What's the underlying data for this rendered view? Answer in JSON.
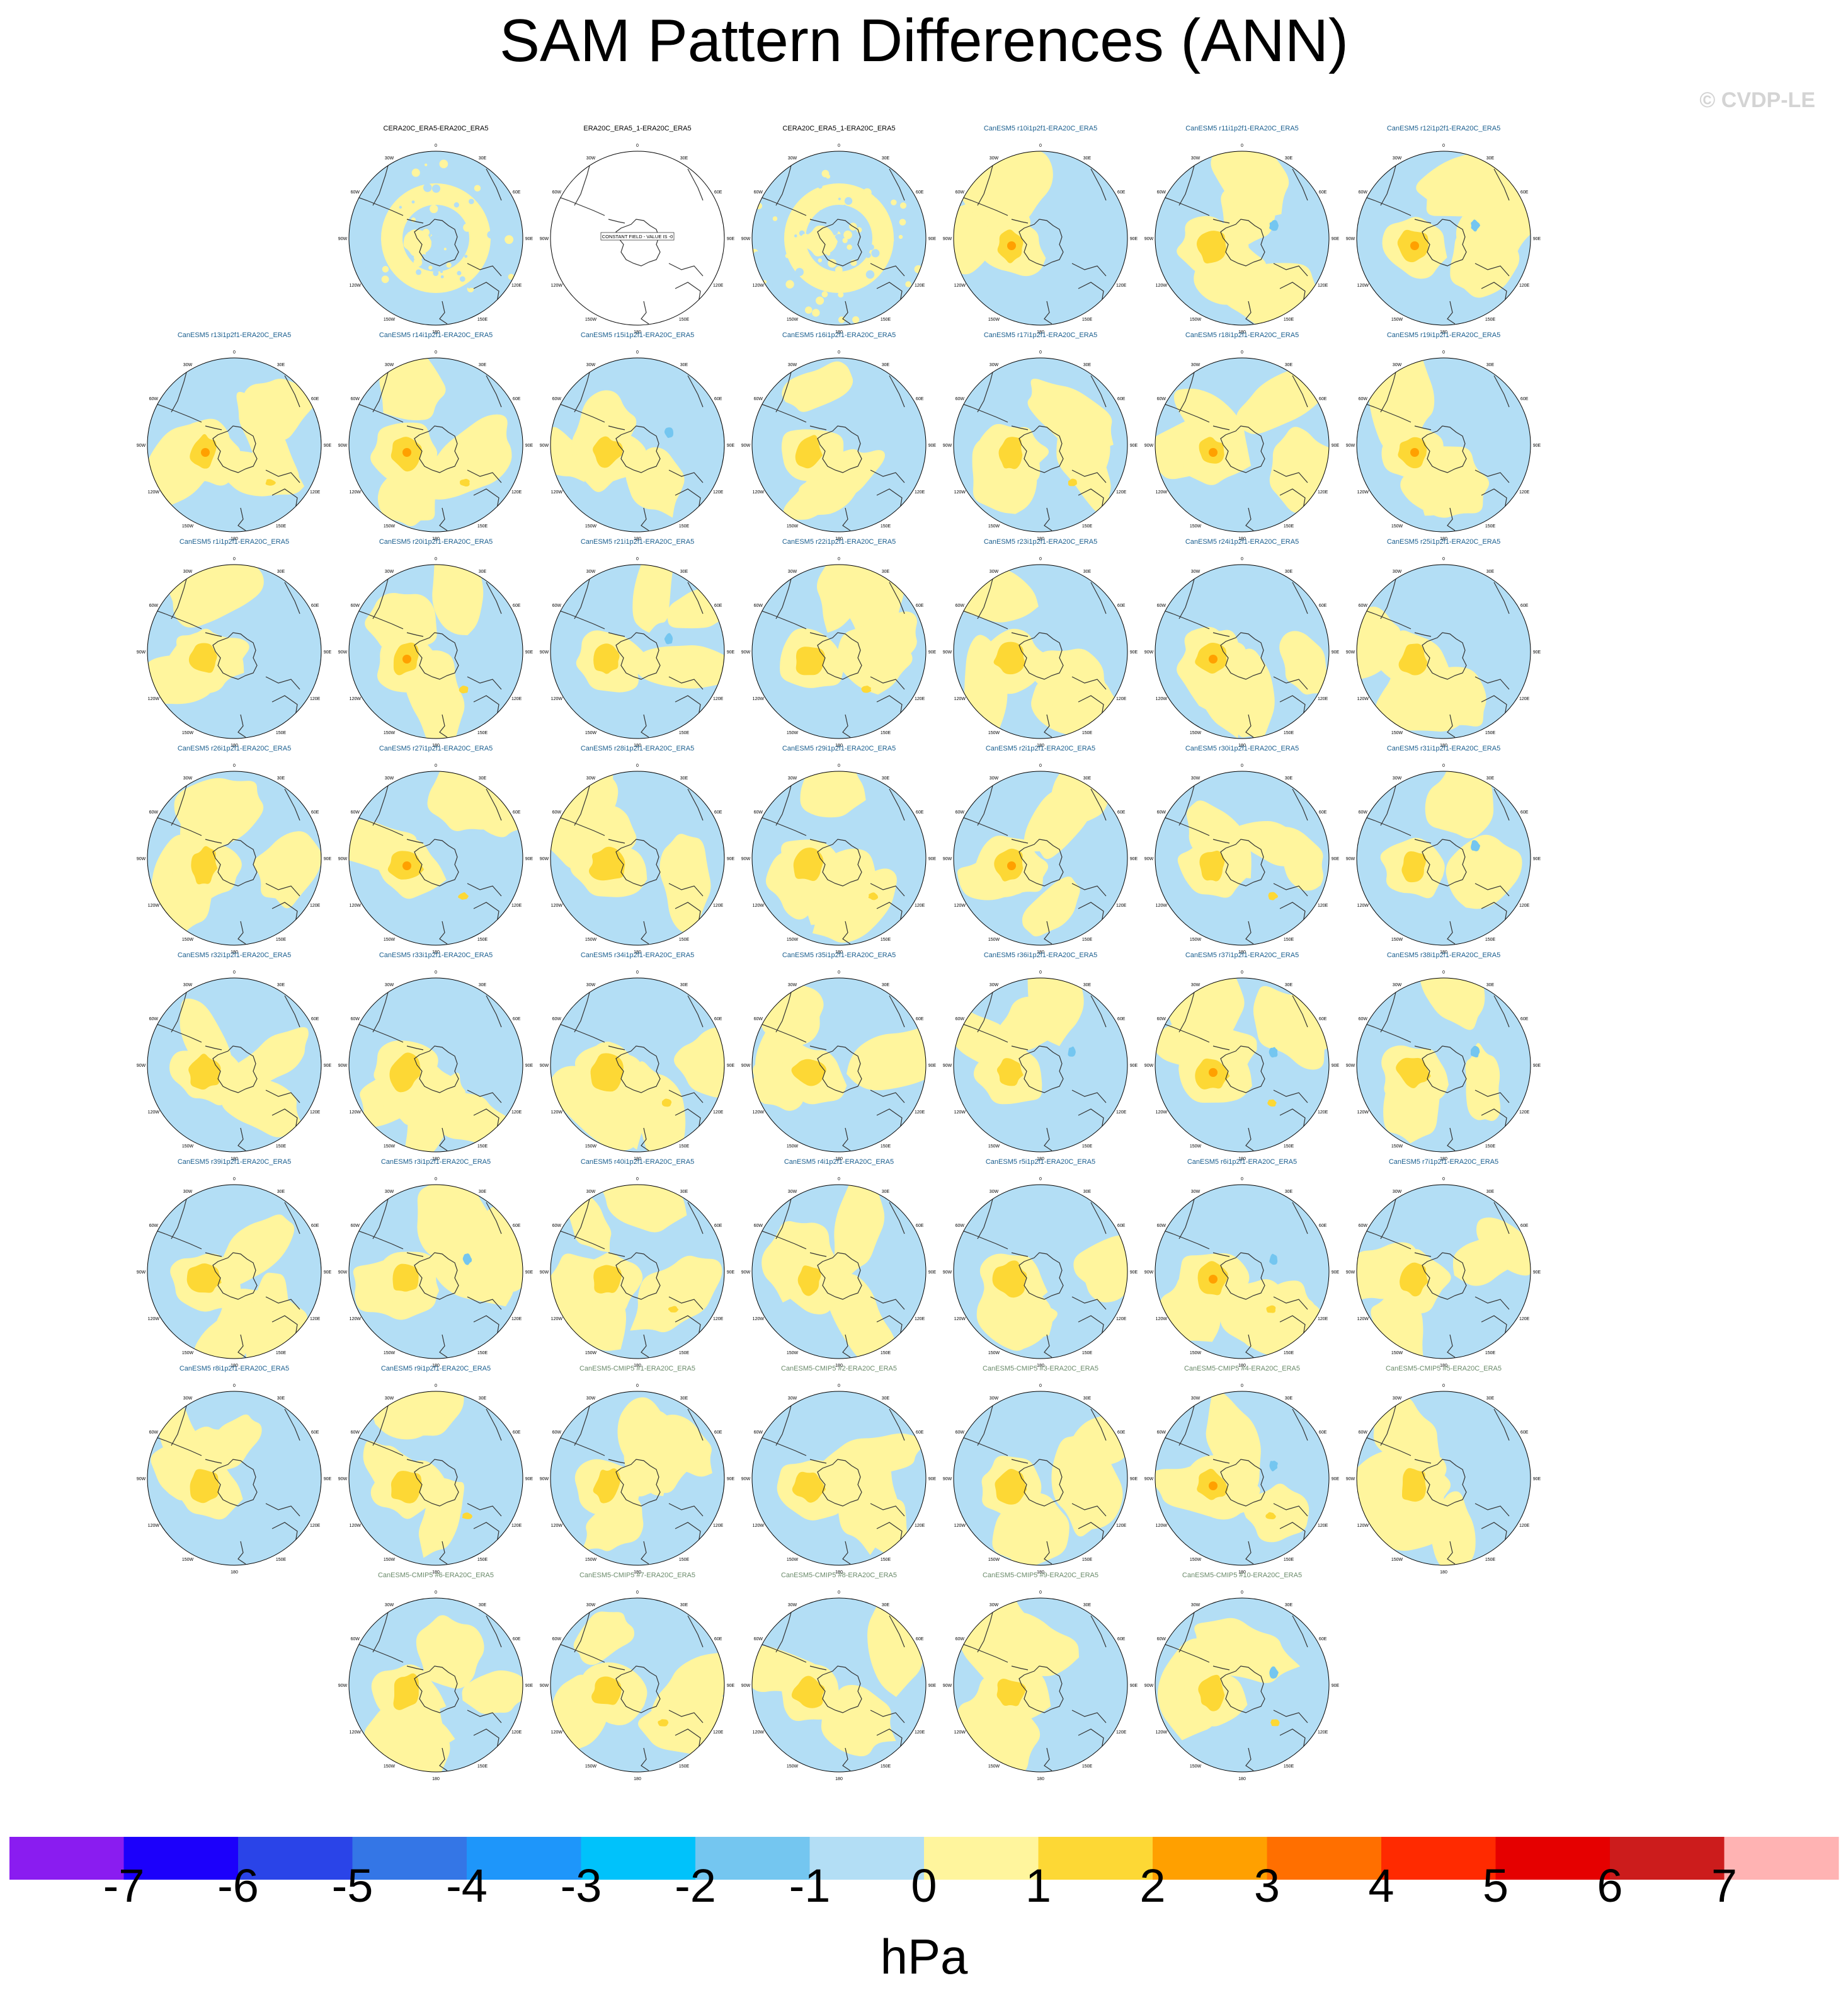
{
  "title": "SAM Pattern Differences (ANN)",
  "watermark": "© CVDP-LE",
  "map_labels": {
    "lon_top": "0",
    "lon_30w": "30W",
    "lon_30e": "30E",
    "lon_60w": "60W",
    "lon_60e": "60E",
    "lon_90w": "90W",
    "lon_90e": "90E",
    "lon_120w": "120W",
    "lon_120e": "120E",
    "lon_150w": "150W",
    "lon_150e": "150E",
    "lon_bottom": "180"
  },
  "constant_field_label": "CONSTANT FIELD - VALUE IS -0",
  "colors": {
    "obs_title": "#000000",
    "lens_title": "#1a5e8e",
    "cmip_title": "#6a8a6a",
    "pos1": "#fff59d",
    "pos2": "#fdd835",
    "pos3": "#ffa000",
    "neg1": "#b3def5",
    "neg2": "#74c6f0",
    "coast": "#333333"
  },
  "chart_data": {
    "type": "heatmap",
    "description_type": "polar-stereographic map panels",
    "units": "hPa",
    "colorbar": {
      "levels": [
        -7,
        -6,
        -5,
        -4,
        -3,
        -2,
        -1,
        0,
        1,
        2,
        3,
        4,
        5,
        6,
        7
      ],
      "tick_labels": [
        "-7",
        "-6",
        "-5",
        "-4",
        "-3",
        "-2",
        "-1",
        "0",
        "1",
        "2",
        "3",
        "4",
        "5",
        "6",
        "7"
      ],
      "colors": [
        "#8a1cf0",
        "#1c00fb",
        "#2a44e8",
        "#3476e6",
        "#1e96fa",
        "#00c2fb",
        "#74c6f0",
        "#b3def5",
        "#fff59d",
        "#fdd835",
        "#ffa000",
        "#ff6f00",
        "#ff2a00",
        "#e50000",
        "#cc1c1c",
        "#ffb3b3"
      ]
    },
    "panels": [
      {
        "title": "CERA20C_ERA5-ERA20C_ERA5",
        "group": "obs",
        "row": 0,
        "col": 1,
        "style": "noisy"
      },
      {
        "title": "ERA20C_ERA5_1-ERA20C_ERA5",
        "group": "obs",
        "row": 0,
        "col": 2,
        "style": "constant"
      },
      {
        "title": "CERA20C_ERA5_1-ERA20C_ERA5",
        "group": "obs",
        "row": 0,
        "col": 3,
        "style": "noisy"
      },
      {
        "title": "CanESM5 r10i1p2f1-ERA20C_ERA5",
        "group": "lens",
        "row": 0,
        "col": 4
      },
      {
        "title": "CanESM5 r11i1p2f1-ERA20C_ERA5",
        "group": "lens",
        "row": 0,
        "col": 5
      },
      {
        "title": "CanESM5 r12i1p2f1-ERA20C_ERA5",
        "group": "lens",
        "row": 0,
        "col": 6
      },
      {
        "title": "CanESM5 r13i1p2f1-ERA20C_ERA5",
        "group": "lens",
        "row": 1,
        "col": 0
      },
      {
        "title": "CanESM5 r14i1p2f1-ERA20C_ERA5",
        "group": "lens",
        "row": 1,
        "col": 1
      },
      {
        "title": "CanESM5 r15i1p2f1-ERA20C_ERA5",
        "group": "lens",
        "row": 1,
        "col": 2
      },
      {
        "title": "CanESM5 r16i1p2f1-ERA20C_ERA5",
        "group": "lens",
        "row": 1,
        "col": 3
      },
      {
        "title": "CanESM5 r17i1p2f1-ERA20C_ERA5",
        "group": "lens",
        "row": 1,
        "col": 4
      },
      {
        "title": "CanESM5 r18i1p2f1-ERA20C_ERA5",
        "group": "lens",
        "row": 1,
        "col": 5
      },
      {
        "title": "CanESM5 r19i1p2f1-ERA20C_ERA5",
        "group": "lens",
        "row": 1,
        "col": 6
      },
      {
        "title": "CanESM5 r1i1p2f1-ERA20C_ERA5",
        "group": "lens",
        "row": 2,
        "col": 0
      },
      {
        "title": "CanESM5 r20i1p2f1-ERA20C_ERA5",
        "group": "lens",
        "row": 2,
        "col": 1
      },
      {
        "title": "CanESM5 r21i1p2f1-ERA20C_ERA5",
        "group": "lens",
        "row": 2,
        "col": 2
      },
      {
        "title": "CanESM5 r22i1p2f1-ERA20C_ERA5",
        "group": "lens",
        "row": 2,
        "col": 3
      },
      {
        "title": "CanESM5 r23i1p2f1-ERA20C_ERA5",
        "group": "lens",
        "row": 2,
        "col": 4
      },
      {
        "title": "CanESM5 r24i1p2f1-ERA20C_ERA5",
        "group": "lens",
        "row": 2,
        "col": 5
      },
      {
        "title": "CanESM5 r25i1p2f1-ERA20C_ERA5",
        "group": "lens",
        "row": 2,
        "col": 6
      },
      {
        "title": "CanESM5 r26i1p2f1-ERA20C_ERA5",
        "group": "lens",
        "row": 3,
        "col": 0
      },
      {
        "title": "CanESM5 r27i1p2f1-ERA20C_ERA5",
        "group": "lens",
        "row": 3,
        "col": 1
      },
      {
        "title": "CanESM5 r28i1p2f1-ERA20C_ERA5",
        "group": "lens",
        "row": 3,
        "col": 2
      },
      {
        "title": "CanESM5 r29i1p2f1-ERA20C_ERA5",
        "group": "lens",
        "row": 3,
        "col": 3
      },
      {
        "title": "CanESM5 r2i1p2f1-ERA20C_ERA5",
        "group": "lens",
        "row": 3,
        "col": 4
      },
      {
        "title": "CanESM5 r30i1p2f1-ERA20C_ERA5",
        "group": "lens",
        "row": 3,
        "col": 5
      },
      {
        "title": "CanESM5 r31i1p2f1-ERA20C_ERA5",
        "group": "lens",
        "row": 3,
        "col": 6
      },
      {
        "title": "CanESM5 r32i1p2f1-ERA20C_ERA5",
        "group": "lens",
        "row": 4,
        "col": 0
      },
      {
        "title": "CanESM5 r33i1p2f1-ERA20C_ERA5",
        "group": "lens",
        "row": 4,
        "col": 1
      },
      {
        "title": "CanESM5 r34i1p2f1-ERA20C_ERA5",
        "group": "lens",
        "row": 4,
        "col": 2
      },
      {
        "title": "CanESM5 r35i1p2f1-ERA20C_ERA5",
        "group": "lens",
        "row": 4,
        "col": 3
      },
      {
        "title": "CanESM5 r36i1p2f1-ERA20C_ERA5",
        "group": "lens",
        "row": 4,
        "col": 4
      },
      {
        "title": "CanESM5 r37i1p2f1-ERA20C_ERA5",
        "group": "lens",
        "row": 4,
        "col": 5
      },
      {
        "title": "CanESM5 r38i1p2f1-ERA20C_ERA5",
        "group": "lens",
        "row": 4,
        "col": 6
      },
      {
        "title": "CanESM5 r39i1p2f1-ERA20C_ERA5",
        "group": "lens",
        "row": 5,
        "col": 0
      },
      {
        "title": "CanESM5 r3i1p2f1-ERA20C_ERA5",
        "group": "lens",
        "row": 5,
        "col": 1
      },
      {
        "title": "CanESM5 r40i1p2f1-ERA20C_ERA5",
        "group": "lens",
        "row": 5,
        "col": 2
      },
      {
        "title": "CanESM5 r4i1p2f1-ERA20C_ERA5",
        "group": "lens",
        "row": 5,
        "col": 3
      },
      {
        "title": "CanESM5 r5i1p2f1-ERA20C_ERA5",
        "group": "lens",
        "row": 5,
        "col": 4
      },
      {
        "title": "CanESM5 r6i1p2f1-ERA20C_ERA5",
        "group": "lens",
        "row": 5,
        "col": 5
      },
      {
        "title": "CanESM5 r7i1p2f1-ERA20C_ERA5",
        "group": "lens",
        "row": 5,
        "col": 6
      },
      {
        "title": "CanESM5 r8i1p2f1-ERA20C_ERA5",
        "group": "lens",
        "row": 6,
        "col": 0
      },
      {
        "title": "CanESM5 r9i1p2f1-ERA20C_ERA5",
        "group": "lens",
        "row": 6,
        "col": 1
      },
      {
        "title": "CanESM5-CMIP5 #1-ERA20C_ERA5",
        "group": "cmip",
        "row": 6,
        "col": 2
      },
      {
        "title": "CanESM5-CMIP5 #2-ERA20C_ERA5",
        "group": "cmip",
        "row": 6,
        "col": 3
      },
      {
        "title": "CanESM5-CMIP5 #3-ERA20C_ERA5",
        "group": "cmip",
        "row": 6,
        "col": 4
      },
      {
        "title": "CanESM5-CMIP5 #4-ERA20C_ERA5",
        "group": "cmip",
        "row": 6,
        "col": 5
      },
      {
        "title": "CanESM5-CMIP5 #5-ERA20C_ERA5",
        "group": "cmip",
        "row": 6,
        "col": 6
      },
      {
        "title": "CanESM5-CMIP5 #6-ERA20C_ERA5",
        "group": "cmip",
        "row": 7,
        "col": 1
      },
      {
        "title": "CanESM5-CMIP5 #7-ERA20C_ERA5",
        "group": "cmip",
        "row": 7,
        "col": 2
      },
      {
        "title": "CanESM5-CMIP5 #8-ERA20C_ERA5",
        "group": "cmip",
        "row": 7,
        "col": 3
      },
      {
        "title": "CanESM5-CMIP5 #9-ERA20C_ERA5",
        "group": "cmip",
        "row": 7,
        "col": 4
      },
      {
        "title": "CanESM5-CMIP5 #10-ERA20C_ERA5",
        "group": "cmip",
        "row": 7,
        "col": 5
      }
    ]
  }
}
